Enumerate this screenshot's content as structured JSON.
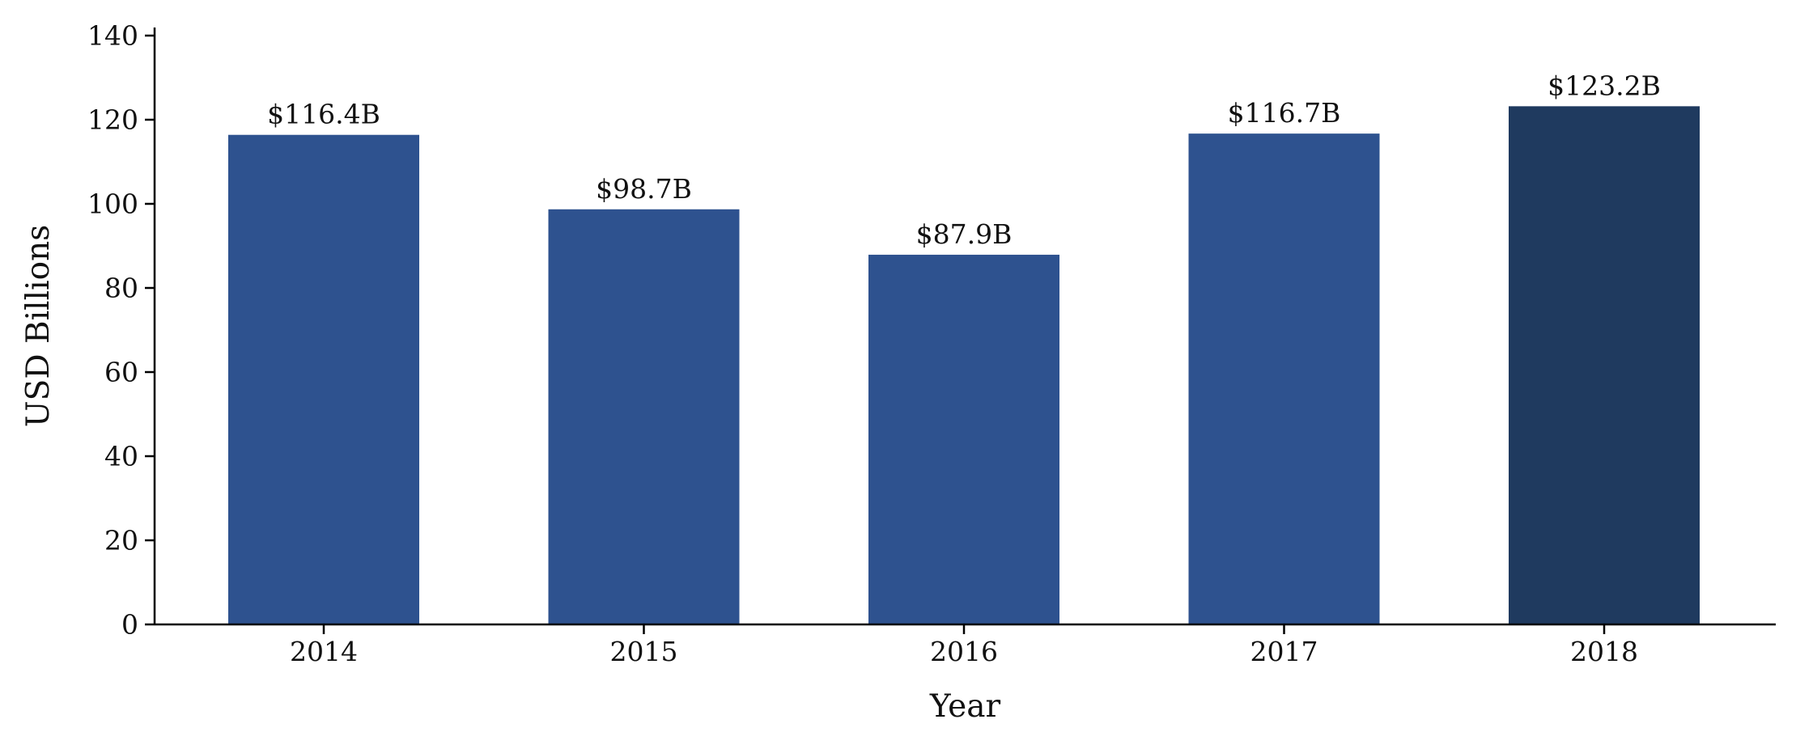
{
  "chart_data": {
    "type": "bar",
    "title": "",
    "xlabel": "Year",
    "ylabel": "USD Billions",
    "categories": [
      "2014",
      "2015",
      "2016",
      "2017",
      "2018"
    ],
    "values": [
      116.4,
      98.7,
      87.9,
      116.7,
      123.2
    ],
    "value_labels": [
      "$116.4B",
      "$98.7B",
      "$87.9B",
      "$116.7B",
      "$123.2B"
    ],
    "bar_colors": [
      "#2e528f",
      "#2e528f",
      "#2e528f",
      "#2e528f",
      "#1f3a5f"
    ],
    "ylim": [
      0,
      140
    ],
    "yticks": [
      0,
      20,
      40,
      60,
      80,
      100,
      120,
      140
    ],
    "ytick_labels": [
      "0",
      "20",
      "40",
      "60",
      "80",
      "100",
      "120",
      "140"
    ],
    "grid": false,
    "legend": "none"
  }
}
